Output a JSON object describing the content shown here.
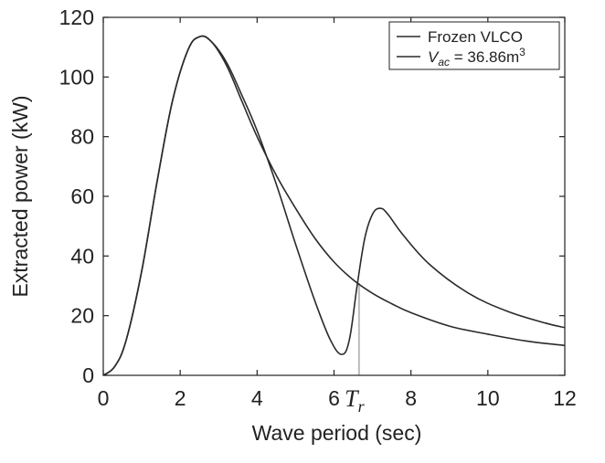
{
  "chart_data": {
    "type": "line",
    "xlabel": "Wave period (sec)",
    "ylabel": "Extracted power (kW)",
    "xlim": [
      0,
      12
    ],
    "ylim": [
      0,
      120
    ],
    "xticks": [
      0,
      2,
      4,
      6,
      8,
      10,
      12
    ],
    "yticks": [
      0,
      20,
      40,
      60,
      80,
      100,
      120
    ],
    "grid": false,
    "legend_position": "top-right",
    "series": [
      {
        "name": "Frozen VLCO",
        "x": [
          0,
          0.3,
          0.6,
          1.0,
          1.4,
          1.8,
          2.2,
          2.5,
          2.8,
          3.2,
          3.6,
          4.0,
          4.5,
          5.0,
          5.5,
          6.0,
          6.5,
          7.0,
          7.5,
          8.0,
          9.0,
          10.0,
          11.0,
          12.0
        ],
        "y": [
          0,
          3,
          12,
          35,
          65,
          92,
          109,
          113.5,
          112,
          104,
          92,
          80,
          67,
          56,
          46,
          38,
          32,
          27.5,
          24,
          21,
          16.5,
          13.8,
          11.5,
          10
        ]
      },
      {
        "name": "V_ac = 36.86m³",
        "legend_label": {
          "v": "V",
          "sub": "ac",
          "rest": " = 36.86m",
          "sup": "3"
        },
        "x": [
          0,
          0.3,
          0.6,
          1.0,
          1.4,
          1.8,
          2.2,
          2.5,
          2.8,
          3.2,
          3.6,
          4.0,
          4.5,
          5.0,
          5.5,
          5.9,
          6.2,
          6.4,
          6.6,
          6.8,
          7.0,
          7.2,
          7.4,
          7.8,
          8.5,
          9.5,
          10.5,
          11.5,
          12.0
        ],
        "y": [
          0,
          3,
          12,
          35,
          65,
          92,
          109,
          113.5,
          112,
          105,
          94,
          82,
          64,
          44,
          25,
          12,
          7,
          12,
          30,
          46,
          54,
          56,
          54,
          47,
          37,
          27.5,
          21.5,
          17.5,
          16
        ]
      }
    ],
    "annotations": [
      {
        "text": "T",
        "subscript": "r",
        "x": 6.65,
        "line_color": "#bbbbbb"
      }
    ],
    "colors": {
      "series": "#2a2a2a",
      "axis": "#222222",
      "marker_line": "#bbbbbb"
    }
  }
}
